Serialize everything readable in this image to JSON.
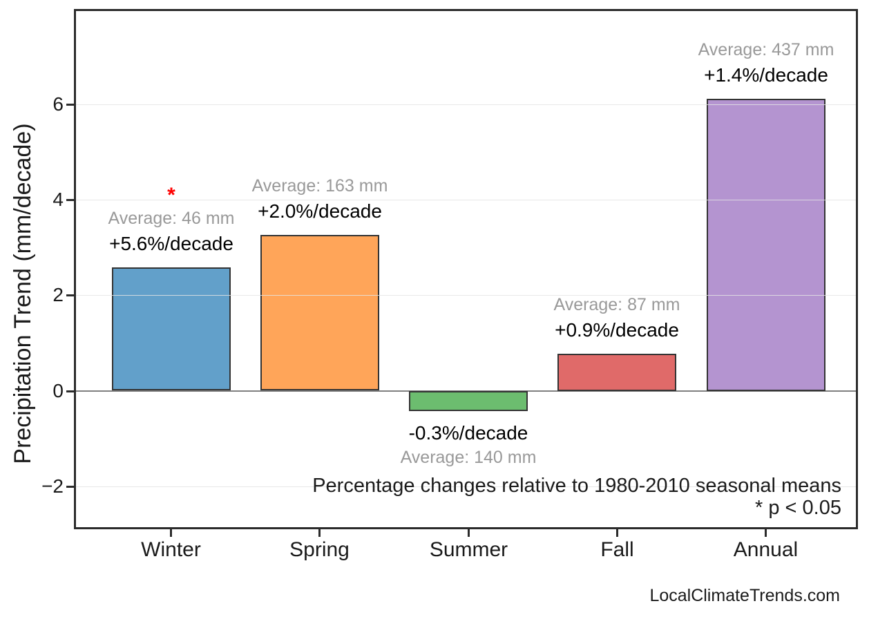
{
  "chart_data": {
    "type": "bar",
    "title": "",
    "xlabel": "",
    "ylabel": "Precipitation Trend (mm/decade)",
    "categories": [
      "Winter",
      "Spring",
      "Summer",
      "Fall",
      "Annual"
    ],
    "values": [
      2.58,
      3.26,
      -0.42,
      0.78,
      6.12
    ],
    "bars": [
      {
        "category": "Winter",
        "value": 2.58,
        "pct_label": "+5.6%/decade",
        "avg_label": "Average: 46 mm",
        "color": "#62A0CA",
        "significant": true
      },
      {
        "category": "Spring",
        "value": 3.26,
        "pct_label": "+2.0%/decade",
        "avg_label": "Average: 163 mm",
        "color": "#FFA559",
        "significant": false
      },
      {
        "category": "Summer",
        "value": -0.42,
        "pct_label": "-0.3%/decade",
        "avg_label": "Average: 140 mm",
        "color": "#6CBD6F",
        "significant": false
      },
      {
        "category": "Fall",
        "value": 0.78,
        "pct_label": "+0.9%/decade",
        "avg_label": "Average: 87 mm",
        "color": "#E06A69",
        "significant": false
      },
      {
        "category": "Annual",
        "value": 6.12,
        "pct_label": "+1.4%/decade",
        "avg_label": "Average: 437 mm",
        "color": "#B494D0",
        "significant": false
      }
    ],
    "yticks": [
      {
        "value": -2,
        "label": "−2"
      },
      {
        "value": 0,
        "label": "0"
      },
      {
        "value": 2,
        "label": "2"
      },
      {
        "value": 4,
        "label": "4"
      },
      {
        "value": 6,
        "label": "6"
      }
    ],
    "ylim": [
      -2.9,
      8.0
    ],
    "grid": "horizontal",
    "legend_position": "none",
    "notes": [
      "Percentage changes relative to 1980-2010 seasonal means",
      "* p < 0.05"
    ],
    "significance_marker": "*",
    "significance_color": "#FF0000",
    "bar_edge_color": "#333333",
    "zero_line_color": "#7F7F7F",
    "gridline_color": "rgba(228,228,228,0.85)",
    "avg_label_color": "#999999",
    "frame_color": "#2b2b2b"
  },
  "footer": {
    "watermark": "LocalClimateTrends.com"
  }
}
